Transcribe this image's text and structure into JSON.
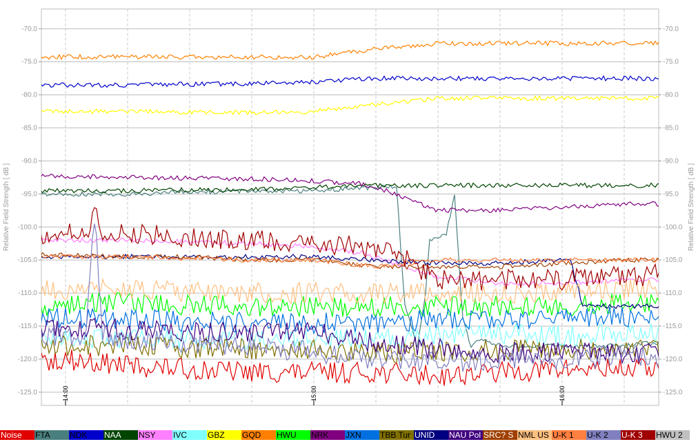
{
  "chart_data": {
    "type": "line",
    "title": "",
    "ylabel_left": "Relative Field Strength [ dB ]",
    "ylabel_right": "Relative Field Strength [ dB ]",
    "ylim": [
      -127,
      -67
    ],
    "y_ticks": [
      -70,
      -75,
      -80,
      -85,
      -90,
      -95,
      -100,
      -105,
      -110,
      -115,
      -120,
      -125
    ],
    "y_tick_labels": [
      "-70.0",
      "-75.0",
      "-80.0",
      "-85.0",
      "-90.0",
      "-95.0",
      "-100.0",
      "-105.0",
      "-110.0",
      "-115.0",
      "-120.0",
      "-125.0"
    ],
    "x_range_minutes": [
      -45,
      105
    ],
    "x_time_labels": [
      {
        "minutes": 0,
        "label": "14:00"
      },
      {
        "minutes": 60,
        "label": "15:00"
      },
      {
        "minutes": 120,
        "label": "16:00"
      }
    ],
    "grid": true,
    "legend_position": "bottom",
    "series": [
      {
        "name": "Noise",
        "color": "#e00000",
        "label_color": "#ffffff",
        "points": [
          [
            -45,
            -121
          ],
          [
            -30,
            -120.5
          ],
          [
            -15,
            -121
          ],
          [
            0,
            -120
          ],
          [
            15,
            -121
          ],
          [
            30,
            -121.5
          ],
          [
            45,
            -122
          ],
          [
            60,
            -122
          ],
          [
            75,
            -122
          ],
          [
            90,
            -122.5
          ],
          [
            105,
            -122
          ],
          [
            120,
            -121.5
          ],
          [
            135,
            -121.5
          ],
          [
            150,
            -121
          ]
        ]
      },
      {
        "name": "FTA",
        "color": "#4a7f7f",
        "label_color": "#000000",
        "points": [
          [
            -45,
            -95.5
          ],
          [
            -15,
            -95
          ],
          [
            15,
            -95
          ],
          [
            45,
            -94.5
          ],
          [
            60,
            -94.5
          ],
          [
            75,
            -94
          ],
          [
            80,
            -94
          ],
          [
            82,
            -112
          ],
          [
            85,
            -118
          ],
          [
            87,
            -110
          ],
          [
            88,
            -102
          ],
          [
            92,
            -101
          ],
          [
            94,
            -95
          ],
          [
            96,
            -114
          ],
          [
            98,
            -118
          ],
          [
            100,
            -117
          ],
          [
            105,
            -118
          ],
          [
            120,
            -118
          ],
          [
            135,
            -118
          ],
          [
            150,
            -117
          ]
        ]
      },
      {
        "name": "NDK",
        "color": "#0000cc",
        "label_color": "#000000",
        "points": [
          [
            -45,
            -78.5
          ],
          [
            -15,
            -78.5
          ],
          [
            15,
            -78.5
          ],
          [
            45,
            -78.3
          ],
          [
            60,
            -78
          ],
          [
            75,
            -77.5
          ],
          [
            90,
            -77.5
          ],
          [
            105,
            -77.5
          ],
          [
            120,
            -77.5
          ],
          [
            135,
            -77.5
          ],
          [
            150,
            -77.5
          ]
        ]
      },
      {
        "name": "NAA",
        "color": "#004400",
        "label_color": "#ffffff",
        "points": [
          [
            -45,
            -94.5
          ],
          [
            -15,
            -94.5
          ],
          [
            15,
            -94.5
          ],
          [
            45,
            -94.3
          ],
          [
            60,
            -94
          ],
          [
            75,
            -93.7
          ],
          [
            90,
            -93.7
          ],
          [
            105,
            -93.7
          ],
          [
            120,
            -93.7
          ],
          [
            135,
            -93.7
          ],
          [
            150,
            -93.7
          ]
        ]
      },
      {
        "name": "NSY",
        "color": "#ff80ff",
        "label_color": "#000000",
        "points": [
          [
            -45,
            -102
          ],
          [
            -15,
            -102
          ],
          [
            15,
            -102
          ],
          [
            45,
            -102.5
          ],
          [
            60,
            -103
          ],
          [
            72,
            -104
          ],
          [
            82,
            -106
          ],
          [
            90,
            -107.5
          ],
          [
            105,
            -108.5
          ],
          [
            120,
            -108.5
          ],
          [
            135,
            -108
          ],
          [
            150,
            -108
          ]
        ]
      },
      {
        "name": "IVC",
        "color": "#80ffff",
        "label_color": "#000000",
        "points": [
          [
            -45,
            -117
          ],
          [
            -15,
            -116.5
          ],
          [
            15,
            -117
          ],
          [
            45,
            -117
          ],
          [
            60,
            -117
          ],
          [
            75,
            -117
          ],
          [
            90,
            -116.5
          ],
          [
            105,
            -116
          ],
          [
            120,
            -116.5
          ],
          [
            135,
            -116
          ],
          [
            150,
            -116
          ]
        ]
      },
      {
        "name": "GBZ",
        "color": "#ffff00",
        "label_color": "#000000",
        "points": [
          [
            -45,
            -82.8
          ],
          [
            -15,
            -82.5
          ],
          [
            15,
            -82.5
          ],
          [
            45,
            -82.7
          ],
          [
            60,
            -82.5
          ],
          [
            75,
            -81.5
          ],
          [
            90,
            -80.5
          ],
          [
            105,
            -80.5
          ],
          [
            120,
            -80.5
          ],
          [
            135,
            -80.5
          ],
          [
            150,
            -80.5
          ]
        ]
      },
      {
        "name": "GQD",
        "color": "#ff8000",
        "label_color": "#000000",
        "points": [
          [
            -45,
            -74.5
          ],
          [
            -15,
            -74.3
          ],
          [
            15,
            -74.2
          ],
          [
            45,
            -74.3
          ],
          [
            60,
            -74.3
          ],
          [
            75,
            -73
          ],
          [
            90,
            -72.2
          ],
          [
            105,
            -72.2
          ],
          [
            120,
            -72.2
          ],
          [
            135,
            -72.2
          ],
          [
            150,
            -72.2
          ]
        ]
      },
      {
        "name": "HWU",
        "color": "#00ff00",
        "label_color": "#000000",
        "points": [
          [
            -45,
            -112
          ],
          [
            -15,
            -112
          ],
          [
            15,
            -111.5
          ],
          [
            45,
            -112
          ],
          [
            60,
            -112
          ],
          [
            75,
            -112
          ],
          [
            90,
            -112
          ],
          [
            105,
            -112
          ],
          [
            120,
            -112
          ],
          [
            135,
            -111.5
          ],
          [
            150,
            -111
          ]
        ]
      },
      {
        "name": "NRK",
        "color": "#800080",
        "label_color": "#000000",
        "points": [
          [
            -45,
            -92
          ],
          [
            -15,
            -92.2
          ],
          [
            15,
            -92.5
          ],
          [
            45,
            -92.7
          ],
          [
            60,
            -93
          ],
          [
            72,
            -93.5
          ],
          [
            80,
            -95
          ],
          [
            90,
            -97.5
          ],
          [
            105,
            -97.5
          ],
          [
            120,
            -97
          ],
          [
            135,
            -96.5
          ],
          [
            150,
            -96.5
          ]
        ]
      },
      {
        "name": "JXN",
        "color": "#0070e0",
        "label_color": "#000000",
        "points": [
          [
            -45,
            -114
          ],
          [
            -15,
            -113.5
          ],
          [
            15,
            -114
          ],
          [
            45,
            -114.5
          ],
          [
            60,
            -114.5
          ],
          [
            75,
            -114.5
          ],
          [
            90,
            -114
          ],
          [
            105,
            -114
          ],
          [
            120,
            -114
          ],
          [
            135,
            -113.5
          ],
          [
            150,
            -113.5
          ]
        ]
      },
      {
        "name": "TBB Tur",
        "color": "#807000",
        "label_color": "#000000",
        "points": [
          [
            -45,
            -118.5
          ],
          [
            -15,
            -118
          ],
          [
            15,
            -118
          ],
          [
            45,
            -118.5
          ],
          [
            60,
            -118.5
          ],
          [
            75,
            -119
          ],
          [
            90,
            -119
          ],
          [
            105,
            -118.5
          ],
          [
            120,
            -118.5
          ],
          [
            135,
            -118.5
          ],
          [
            150,
            -118
          ]
        ]
      },
      {
        "name": "UNID",
        "color": "#000080",
        "label_color": "#ffffff",
        "points": [
          [
            -45,
            -104.5
          ],
          [
            -15,
            -104.5
          ],
          [
            15,
            -104.5
          ],
          [
            45,
            -104.5
          ],
          [
            60,
            -104.5
          ],
          [
            75,
            -105
          ],
          [
            90,
            -105.5
          ],
          [
            105,
            -105.5
          ],
          [
            120,
            -105
          ],
          [
            122,
            -105
          ],
          [
            125,
            -112
          ],
          [
            135,
            -112
          ],
          [
            150,
            -112
          ]
        ]
      },
      {
        "name": "NAU Pol",
        "color": "#400080",
        "label_color": "#ffffff",
        "points": [
          [
            -45,
            -115
          ],
          [
            -15,
            -115
          ],
          [
            15,
            -115.5
          ],
          [
            45,
            -116
          ],
          [
            60,
            -116
          ],
          [
            75,
            -117.5
          ],
          [
            90,
            -118.5
          ],
          [
            105,
            -119
          ],
          [
            120,
            -119
          ],
          [
            135,
            -119
          ],
          [
            150,
            -118.5
          ]
        ]
      },
      {
        "name": "SRC? S",
        "color": "#a04000",
        "label_color": "#ffffff",
        "points": [
          [
            -45,
            -104.5
          ],
          [
            -15,
            -104
          ],
          [
            15,
            -104.5
          ],
          [
            30,
            -104.5
          ],
          [
            45,
            -105
          ],
          [
            60,
            -105
          ],
          [
            75,
            -106
          ],
          [
            90,
            -106
          ],
          [
            105,
            -106
          ],
          [
            120,
            -105.5
          ],
          [
            135,
            -105
          ],
          [
            150,
            -105
          ]
        ]
      },
      {
        "name": "NML US",
        "color": "#ffc080",
        "label_color": "#000000",
        "points": [
          [
            -45,
            -110
          ],
          [
            -15,
            -109.5
          ],
          [
            15,
            -109.5
          ],
          [
            45,
            -110
          ],
          [
            60,
            -110
          ],
          [
            75,
            -110
          ],
          [
            90,
            -110
          ],
          [
            105,
            -110
          ],
          [
            120,
            -110
          ],
          [
            135,
            -109.5
          ],
          [
            150,
            -109.5
          ]
        ]
      },
      {
        "name": "U-K 1",
        "color": "#ff8040",
        "label_color": "#000000",
        "points": [
          [
            -45,
            -104.5
          ],
          [
            -15,
            -104.5
          ],
          [
            15,
            -104.5
          ],
          [
            45,
            -105
          ],
          [
            60,
            -105
          ],
          [
            75,
            -106
          ],
          [
            90,
            -105
          ],
          [
            105,
            -105
          ],
          [
            120,
            -105
          ],
          [
            135,
            -105
          ],
          [
            150,
            -105
          ]
        ]
      },
      {
        "name": "U-K 2",
        "color": "#8080c0",
        "label_color": "#000000",
        "points": [
          [
            -45,
            -117
          ],
          [
            -15,
            -116.5
          ],
          [
            5,
            -116.5
          ],
          [
            7,
            -98
          ],
          [
            9,
            -116
          ],
          [
            15,
            -117
          ],
          [
            45,
            -118
          ],
          [
            60,
            -119
          ],
          [
            75,
            -120
          ],
          [
            90,
            -120.5
          ],
          [
            105,
            -120
          ],
          [
            120,
            -120
          ],
          [
            135,
            -119.5
          ],
          [
            150,
            -119.5
          ]
        ]
      },
      {
        "name": "U-K 3",
        "color": "#a00000",
        "label_color": "#ffffff",
        "points": [
          [
            -45,
            -115
          ],
          [
            -44,
            -102
          ],
          [
            -30,
            -101.5
          ],
          [
            -15,
            -101.3
          ],
          [
            5,
            -101
          ],
          [
            7,
            -98
          ],
          [
            9,
            -101
          ],
          [
            30,
            -101.5
          ],
          [
            45,
            -102
          ],
          [
            60,
            -102.5
          ],
          [
            72,
            -103
          ],
          [
            80,
            -104
          ],
          [
            90,
            -108
          ],
          [
            105,
            -108
          ],
          [
            120,
            -108
          ],
          [
            135,
            -107.5
          ],
          [
            150,
            -107
          ]
        ]
      },
      {
        "name": "HWU 2",
        "color": "#c0c0c0",
        "label_color": "#000000",
        "points": []
      }
    ]
  }
}
